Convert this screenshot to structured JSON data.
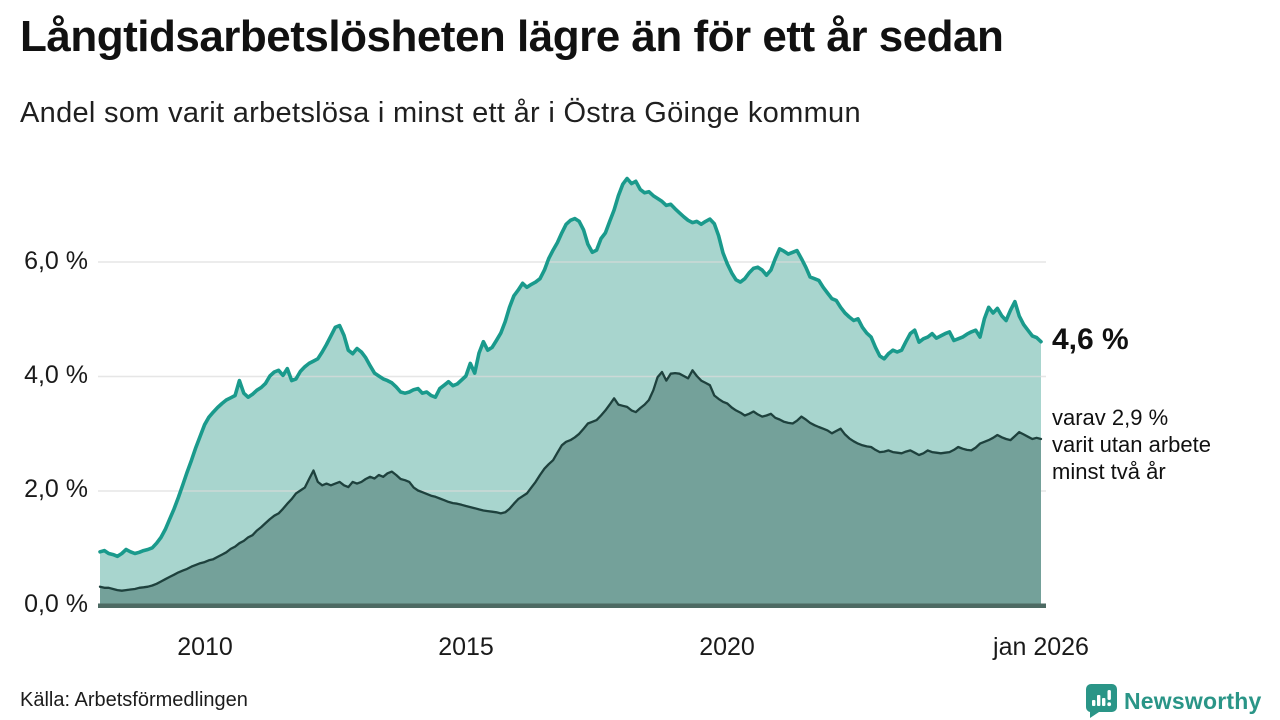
{
  "header": {
    "title": "Långtidsarbetslösheten lägre än för ett år sedan",
    "subtitle": "Andel som varit arbetslösa i minst ett år i Östra Göinge kommun"
  },
  "annotations": {
    "end_value_label": "4,6 %",
    "sub_lines": [
      "varav 2,9 %",
      "varit utan arbete",
      "minst två år"
    ]
  },
  "footer": {
    "source": "Källa: Arbetsförmedlingen",
    "brand_name": "Newsworthy",
    "brand_color": "#2a9587"
  },
  "chart_data": {
    "type": "area",
    "title": "Andel som varit arbetslösa i minst ett år i Östra Göinge kommun",
    "interval": "monthly",
    "x_start": "2008-01",
    "x_end": "2026-01",
    "x_tick_labels": [
      "2010",
      "2015",
      "2020",
      "jan 2026"
    ],
    "x_tick_month_index": [
      24,
      84,
      144,
      216
    ],
    "y_tick_labels": [
      "0,0 %",
      "2,0 %",
      "4,0 %",
      "6,0 %"
    ],
    "y_ticks": [
      0,
      2,
      4,
      6
    ],
    "ylim": [
      0,
      7.9
    ],
    "grid": true,
    "legend_position": "none",
    "unit": "%",
    "colors": {
      "gridline": "#dcdcdc",
      "baseline": "#4d6a63"
    },
    "series": [
      {
        "name": "Arbetslösa minst ett år",
        "color": "#1a9a8c",
        "fill": "#a8d5ce",
        "end_value": 4.6,
        "values": [
          0.93,
          0.95,
          0.9,
          0.88,
          0.85,
          0.9,
          0.97,
          0.93,
          0.9,
          0.92,
          0.95,
          0.97,
          1.0,
          1.08,
          1.18,
          1.32,
          1.5,
          1.68,
          1.88,
          2.1,
          2.32,
          2.53,
          2.75,
          2.95,
          3.15,
          3.28,
          3.37,
          3.45,
          3.52,
          3.58,
          3.62,
          3.66,
          3.92,
          3.7,
          3.63,
          3.68,
          3.75,
          3.8,
          3.87,
          4.0,
          4.07,
          4.1,
          4.01,
          4.13,
          3.92,
          3.95,
          4.08,
          4.16,
          4.22,
          4.26,
          4.3,
          4.42,
          4.55,
          4.7,
          4.85,
          4.88,
          4.71,
          4.45,
          4.39,
          4.48,
          4.42,
          4.32,
          4.18,
          4.05,
          4.0,
          3.95,
          3.92,
          3.88,
          3.81,
          3.72,
          3.7,
          3.72,
          3.76,
          3.78,
          3.7,
          3.72,
          3.66,
          3.63,
          3.78,
          3.84,
          3.9,
          3.83,
          3.86,
          3.93,
          4.0,
          4.22,
          4.05,
          4.4,
          4.6,
          4.45,
          4.5,
          4.62,
          4.75,
          4.95,
          5.2,
          5.4,
          5.5,
          5.62,
          5.55,
          5.6,
          5.64,
          5.7,
          5.85,
          6.05,
          6.2,
          6.33,
          6.5,
          6.65,
          6.72,
          6.75,
          6.7,
          6.55,
          6.3,
          6.16,
          6.2,
          6.4,
          6.5,
          6.7,
          6.9,
          7.15,
          7.35,
          7.45,
          7.36,
          7.4,
          7.26,
          7.2,
          7.22,
          7.15,
          7.1,
          7.05,
          6.98,
          7.0,
          6.92,
          6.85,
          6.78,
          6.72,
          6.68,
          6.7,
          6.65,
          6.7,
          6.74,
          6.66,
          6.45,
          6.15,
          5.96,
          5.8,
          5.68,
          5.64,
          5.7,
          5.8,
          5.88,
          5.9,
          5.85,
          5.76,
          5.85,
          6.05,
          6.22,
          6.18,
          6.13,
          6.16,
          6.19,
          6.05,
          5.9,
          5.73,
          5.7,
          5.67,
          5.55,
          5.45,
          5.35,
          5.32,
          5.2,
          5.1,
          5.03,
          4.97,
          5.0,
          4.85,
          4.75,
          4.68,
          4.5,
          4.35,
          4.3,
          4.39,
          4.45,
          4.42,
          4.45,
          4.6,
          4.74,
          4.8,
          4.59,
          4.65,
          4.68,
          4.74,
          4.66,
          4.7,
          4.74,
          4.77,
          4.62,
          4.65,
          4.68,
          4.73,
          4.77,
          4.8,
          4.68,
          5.0,
          5.2,
          5.1,
          5.18,
          5.05,
          4.97,
          5.15,
          5.3,
          5.05,
          4.9,
          4.8,
          4.7,
          4.67,
          4.6
        ]
      },
      {
        "name": "Varit utan arbete minst två år",
        "color": "#1e413d",
        "fill": "#74a19a",
        "end_value": 2.9,
        "values": [
          0.32,
          0.3,
          0.3,
          0.28,
          0.26,
          0.25,
          0.26,
          0.27,
          0.28,
          0.3,
          0.31,
          0.32,
          0.34,
          0.37,
          0.41,
          0.45,
          0.49,
          0.53,
          0.57,
          0.6,
          0.63,
          0.67,
          0.7,
          0.73,
          0.75,
          0.78,
          0.8,
          0.84,
          0.88,
          0.92,
          0.98,
          1.02,
          1.08,
          1.12,
          1.18,
          1.22,
          1.3,
          1.36,
          1.43,
          1.5,
          1.56,
          1.6,
          1.68,
          1.77,
          1.85,
          1.95,
          2.0,
          2.05,
          2.2,
          2.35,
          2.15,
          2.09,
          2.12,
          2.09,
          2.12,
          2.15,
          2.09,
          2.06,
          2.15,
          2.12,
          2.15,
          2.2,
          2.24,
          2.21,
          2.27,
          2.24,
          2.3,
          2.33,
          2.27,
          2.2,
          2.18,
          2.15,
          2.05,
          2.0,
          1.97,
          1.94,
          1.91,
          1.89,
          1.86,
          1.83,
          1.8,
          1.78,
          1.77,
          1.75,
          1.73,
          1.71,
          1.69,
          1.67,
          1.65,
          1.64,
          1.63,
          1.62,
          1.6,
          1.62,
          1.68,
          1.77,
          1.85,
          1.9,
          1.95,
          2.05,
          2.15,
          2.27,
          2.38,
          2.46,
          2.53,
          2.66,
          2.79,
          2.85,
          2.88,
          2.93,
          2.99,
          3.08,
          3.17,
          3.2,
          3.23,
          3.31,
          3.4,
          3.5,
          3.61,
          3.5,
          3.48,
          3.46,
          3.4,
          3.37,
          3.44,
          3.5,
          3.58,
          3.75,
          3.98,
          4.07,
          3.92,
          4.04,
          4.05,
          4.04,
          4.0,
          3.96,
          4.1,
          4.0,
          3.92,
          3.88,
          3.84,
          3.66,
          3.6,
          3.55,
          3.52,
          3.45,
          3.4,
          3.36,
          3.31,
          3.34,
          3.38,
          3.33,
          3.29,
          3.31,
          3.34,
          3.27,
          3.24,
          3.2,
          3.18,
          3.17,
          3.22,
          3.29,
          3.24,
          3.18,
          3.14,
          3.11,
          3.08,
          3.05,
          3.0,
          3.04,
          3.08,
          2.98,
          2.91,
          2.86,
          2.82,
          2.79,
          2.77,
          2.76,
          2.71,
          2.67,
          2.68,
          2.7,
          2.67,
          2.66,
          2.65,
          2.68,
          2.7,
          2.66,
          2.62,
          2.65,
          2.7,
          2.67,
          2.66,
          2.65,
          2.66,
          2.67,
          2.71,
          2.76,
          2.73,
          2.71,
          2.7,
          2.75,
          2.82,
          2.85,
          2.88,
          2.92,
          2.97,
          2.93,
          2.9,
          2.88,
          2.95,
          3.02,
          2.98,
          2.94,
          2.9,
          2.92,
          2.9
        ]
      }
    ]
  }
}
